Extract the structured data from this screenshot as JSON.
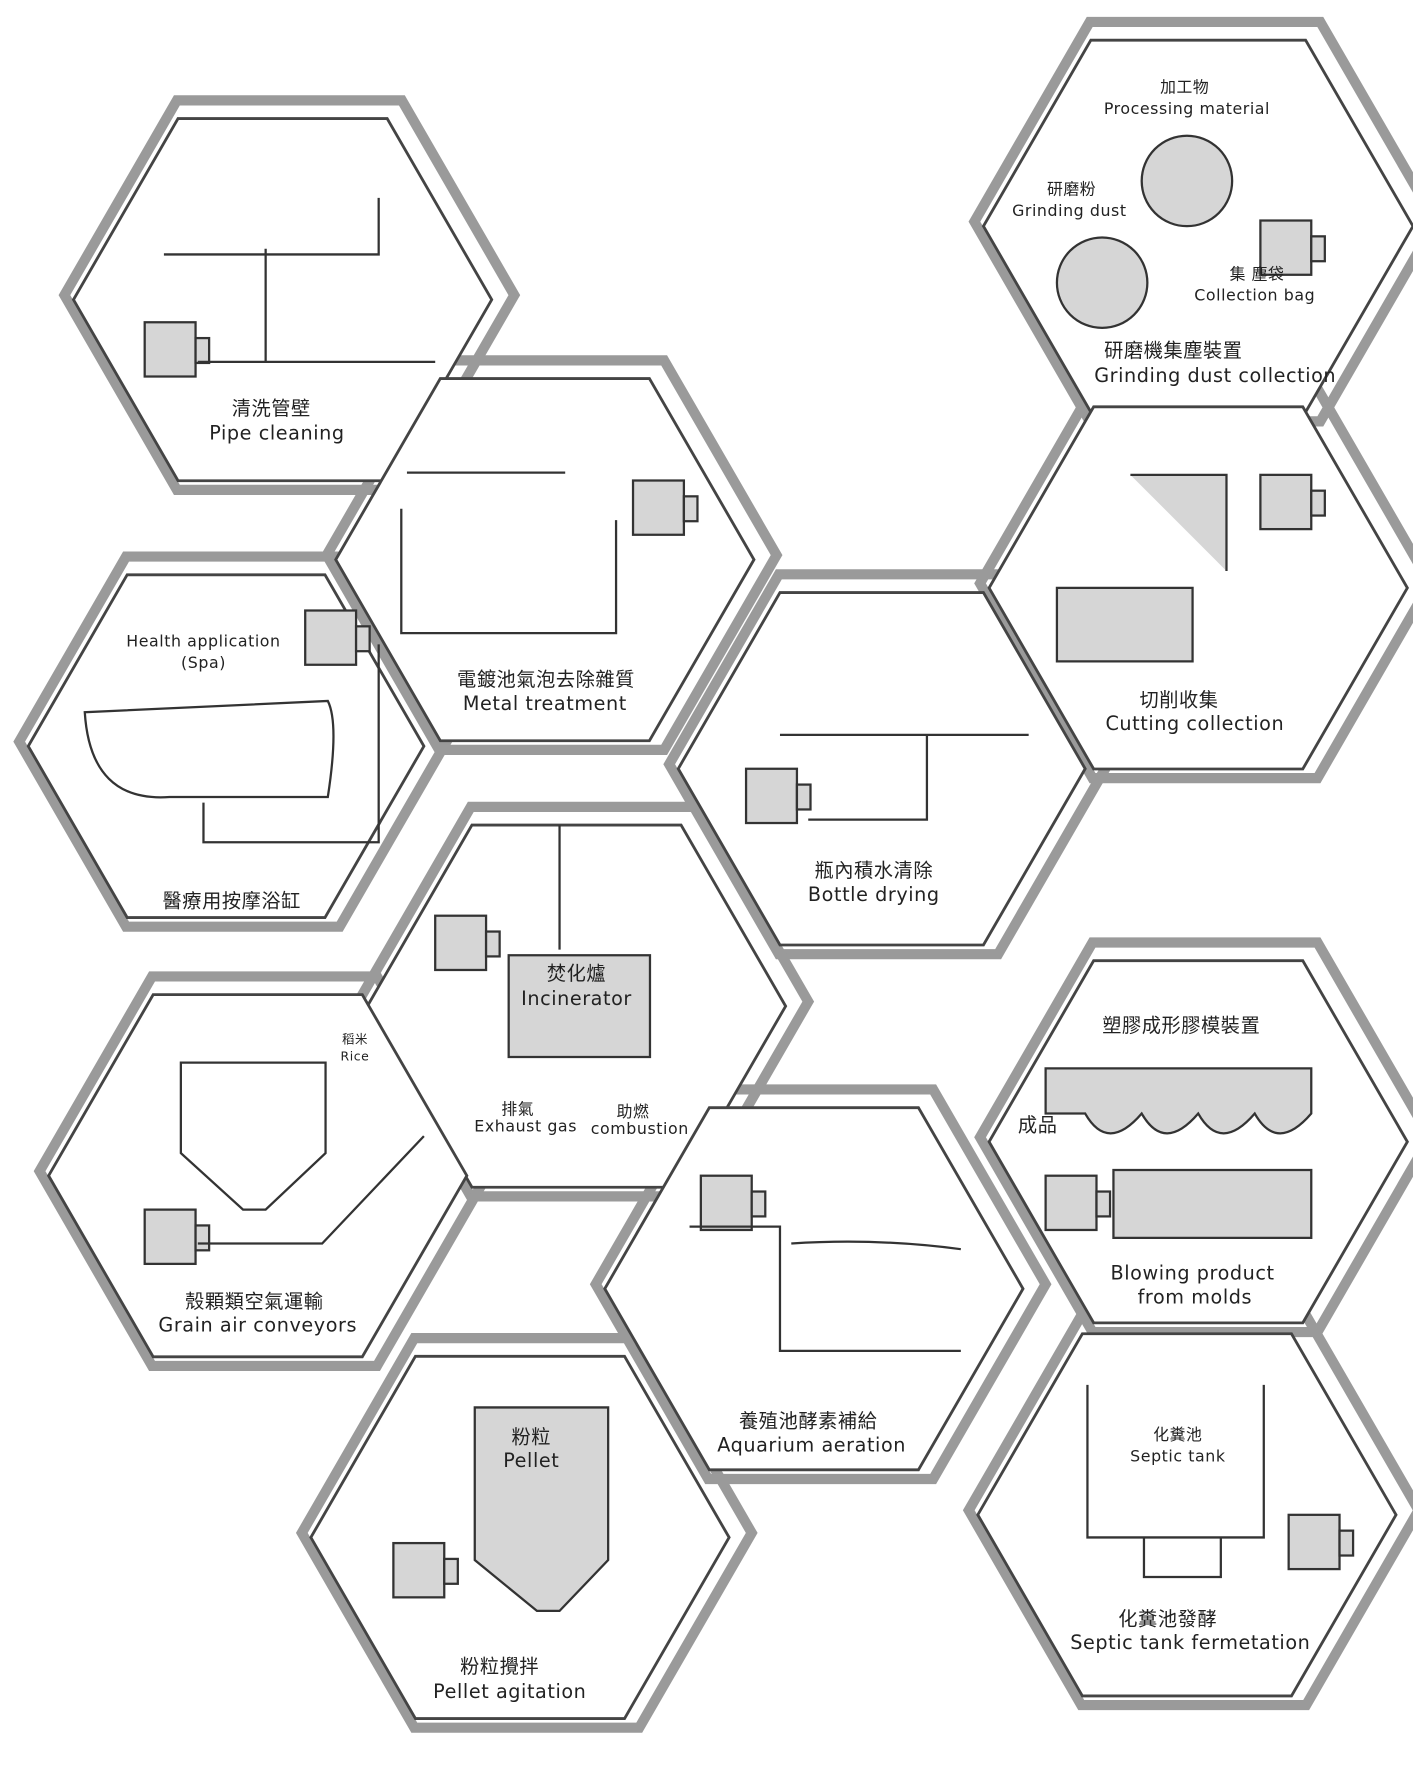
{
  "panels": [
    {
      "labels": [
        "清洗管壁",
        "Pipe cleaning"
      ]
    },
    {
      "labels": [
        "電鍍池氣泡去除雜質",
        "Metal treatment"
      ]
    },
    {
      "labels": [
        "Health application",
        "(Spa)",
        "醫療用按摩浴缸"
      ]
    },
    {
      "labels": [
        "加工物",
        "Processing material",
        "研磨粉",
        "Grinding  dust",
        "集 塵袋",
        "Collection bag",
        "研磨機集塵裝置",
        "Grinding dust collection"
      ]
    },
    {
      "labels": [
        "切削收集",
        "Cutting collection"
      ]
    },
    {
      "labels": [
        "瓶內積水清除",
        "Bottle  drying"
      ]
    },
    {
      "labels": [
        "焚化爐",
        "Incinerator",
        "排氣",
        "Exhaust gas",
        "助燃",
        "combustion"
      ]
    },
    {
      "labels": [
        "稻米",
        "Rice",
        "殼顆類空氣運輸",
        "Grain air conveyors"
      ]
    },
    {
      "labels": [
        "養殖池酵素補給",
        "Aquarium aeration"
      ]
    },
    {
      "labels": [
        "塑膠成形膠模裝置",
        "成品",
        "Blowing product",
        "from molds"
      ]
    },
    {
      "labels": [
        "粉粒",
        "Pellet",
        "粉粒攪拌",
        "Pellet agitation"
      ]
    },
    {
      "labels": [
        "化糞池",
        "Septic tank",
        "化糞池發酵",
        "Septic tank fermetation"
      ]
    }
  ]
}
